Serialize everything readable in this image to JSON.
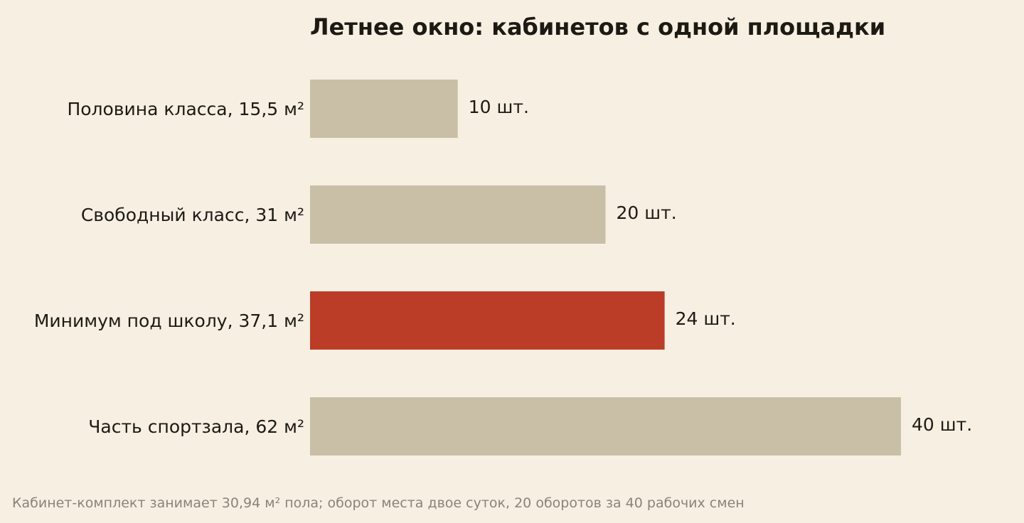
{
  "chart_data": {
    "type": "bar",
    "orientation": "horizontal",
    "title": "Летнее окно: кабинетов с одной площадки",
    "categories": [
      "Половина класса, 15,5 м²",
      "Свободный класс, 31 м²",
      "Минимум под школу, 37,1 м²",
      "Часть спортзала, 62 м²"
    ],
    "values": [
      10,
      20,
      24,
      40
    ],
    "value_labels": [
      "10 шт.",
      "20 шт.",
      "24 шт.",
      "40 шт."
    ],
    "highlight_index": 2,
    "xlim": [
      0,
      40
    ],
    "grid": false,
    "colors": {
      "bar": "#c9bfa7",
      "highlight": "#bb3d27",
      "background": "#f6efe2",
      "text": "#1d1a14",
      "footnote": "#8a8378"
    }
  },
  "footnote": "Кабинет-комплект занимает 30,94 м² пола; оборот места двое суток, 20 оборотов за 40 рабочих смен"
}
